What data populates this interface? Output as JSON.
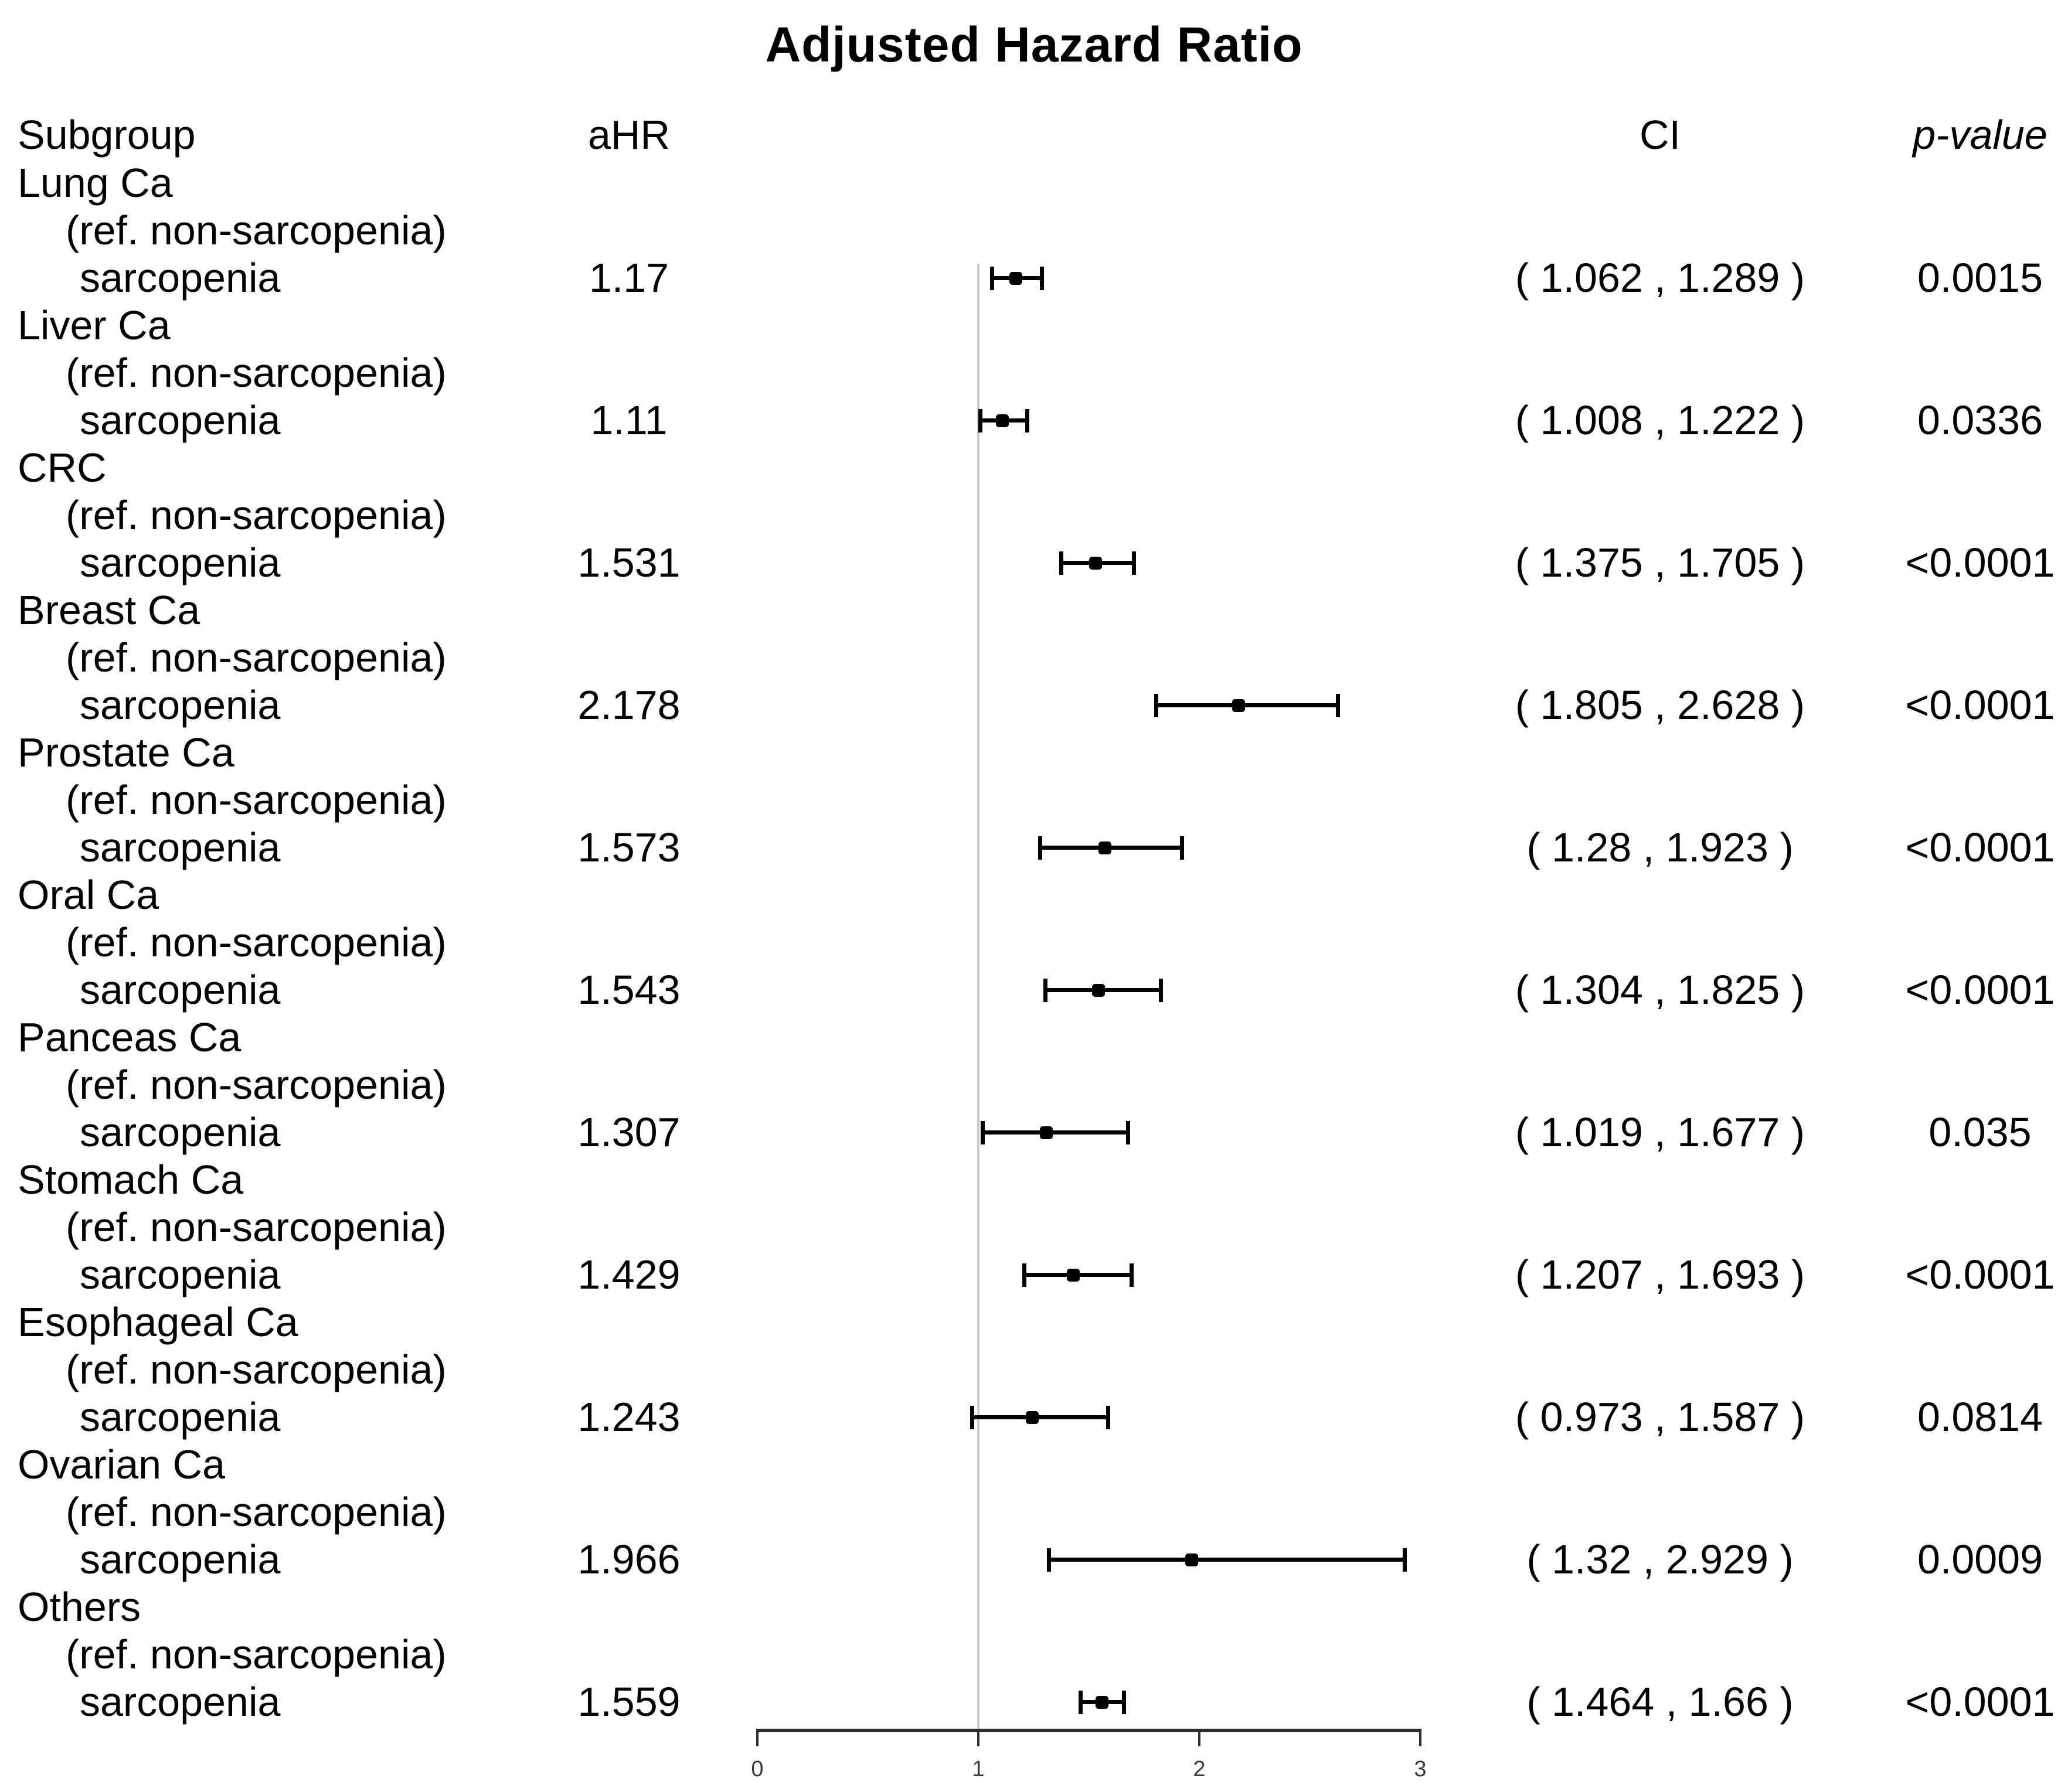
{
  "title": "Adjusted Hazard Ratio",
  "columns": {
    "subgroup": "Subgroup",
    "ahr": "aHR",
    "ci": "CI",
    "pvalue": "p-value"
  },
  "labels": {
    "ref": "(ref. non-sarcopenia)",
    "exposure": "sarcopenia"
  },
  "colors": {
    "text": "#000000",
    "reference_line": "#c8c8c8",
    "axis": "#2e2e2e",
    "marker": "#000000"
  },
  "chart_data": {
    "type": "forest",
    "title": "Adjusted Hazard Ratio",
    "xlabel": "",
    "xlim": [
      0,
      3
    ],
    "x_ticks": [
      "0",
      "1",
      "2",
      "3"
    ],
    "reference_line": 1,
    "rows": [
      {
        "group": "Lung Ca",
        "ahr": 1.17,
        "ahr_text": "1.17",
        "ci_low": 1.062,
        "ci_high": 1.289,
        "ci_text": "( 1.062 , 1.289 )",
        "p_text": "0.0015"
      },
      {
        "group": "Liver Ca",
        "ahr": 1.11,
        "ahr_text": "1.11",
        "ci_low": 1.008,
        "ci_high": 1.222,
        "ci_text": "( 1.008 , 1.222 )",
        "p_text": "0.0336"
      },
      {
        "group": "CRC",
        "ahr": 1.531,
        "ahr_text": "1.531",
        "ci_low": 1.375,
        "ci_high": 1.705,
        "ci_text": "( 1.375 , 1.705 )",
        "p_text": "<0.0001"
      },
      {
        "group": "Breast Ca",
        "ahr": 2.178,
        "ahr_text": "2.178",
        "ci_low": 1.805,
        "ci_high": 2.628,
        "ci_text": "( 1.805 , 2.628 )",
        "p_text": "<0.0001"
      },
      {
        "group": "Prostate Ca",
        "ahr": 1.573,
        "ahr_text": "1.573",
        "ci_low": 1.28,
        "ci_high": 1.923,
        "ci_text": "( 1.28 , 1.923 )",
        "p_text": "<0.0001"
      },
      {
        "group": "Oral Ca",
        "ahr": 1.543,
        "ahr_text": "1.543",
        "ci_low": 1.304,
        "ci_high": 1.825,
        "ci_text": "( 1.304 , 1.825 )",
        "p_text": "<0.0001"
      },
      {
        "group": "Panceas Ca",
        "ahr": 1.307,
        "ahr_text": "1.307",
        "ci_low": 1.019,
        "ci_high": 1.677,
        "ci_text": "( 1.019 , 1.677 )",
        "p_text": "0.035"
      },
      {
        "group": "Stomach Ca",
        "ahr": 1.429,
        "ahr_text": "1.429",
        "ci_low": 1.207,
        "ci_high": 1.693,
        "ci_text": "( 1.207 , 1.693 )",
        "p_text": "<0.0001"
      },
      {
        "group": "Esophageal Ca",
        "ahr": 1.243,
        "ahr_text": "1.243",
        "ci_low": 0.973,
        "ci_high": 1.587,
        "ci_text": "( 0.973 , 1.587 )",
        "p_text": "0.0814"
      },
      {
        "group": "Ovarian Ca",
        "ahr": 1.966,
        "ahr_text": "1.966",
        "ci_low": 1.32,
        "ci_high": 2.929,
        "ci_text": "( 1.32 , 2.929 )",
        "p_text": "0.0009"
      },
      {
        "group": "Others",
        "ahr": 1.559,
        "ahr_text": "1.559",
        "ci_low": 1.464,
        "ci_high": 1.66,
        "ci_text": "( 1.464 , 1.66 )",
        "p_text": "<0.0001"
      }
    ]
  }
}
